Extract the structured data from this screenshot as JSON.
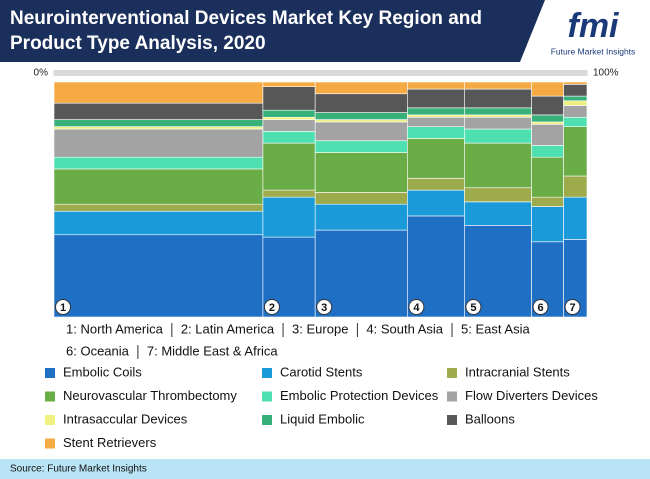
{
  "header": {
    "logo_text": "fmi",
    "logo_caption": "Future Market Insights"
  },
  "chart_data": {
    "type": "marimekko",
    "title": "Neurointerventional Devices Market Key Region and Product Type Analysis, 2020",
    "categories": [
      "North America",
      "Latin America",
      "Europe",
      "South Asia",
      "East Asia",
      "Oceania",
      "Middle East & Africa"
    ],
    "region_markers": [
      "1",
      "2",
      "3",
      "4",
      "5",
      "6",
      "7"
    ],
    "region_legend": [
      "1: North America",
      "2: Latin America",
      "3: Europe",
      "4: South Asia",
      "5: East Asia",
      "6: Oceania",
      "7: Middle East & Africa"
    ],
    "widths": [
      39.2,
      9.8,
      17.3,
      10.7,
      12.6,
      6.0,
      4.4
    ],
    "xlim": [
      0,
      100
    ],
    "xticks": [
      {
        "value": 0,
        "label": "0%"
      },
      {
        "value": 100,
        "label": "100%"
      }
    ],
    "ylim": [
      0,
      100
    ],
    "series": [
      {
        "name": "Embolic Coils",
        "color": "#1f6fc5",
        "values": [
          35,
          34,
          37,
          43,
          39,
          32,
          33
        ]
      },
      {
        "name": "Carotid Stents",
        "color": "#1a9ad8",
        "values": [
          10,
          17,
          11,
          11,
          10,
          15,
          18
        ]
      },
      {
        "name": "Intracranial Stents",
        "color": "#9dab4c",
        "values": [
          3,
          3,
          5,
          5,
          6,
          4,
          9
        ]
      },
      {
        "name": "Neurovascular Thrombectomy",
        "color": "#6aac45",
        "values": [
          15,
          20,
          17,
          17,
          19,
          17,
          21
        ]
      },
      {
        "name": "Embolic Protection Devices",
        "color": "#4ee0b0",
        "values": [
          5,
          5,
          5,
          5,
          6,
          5,
          4
        ]
      },
      {
        "name": "Flow Diverters Devices",
        "color": "#a3a3a3",
        "values": [
          12,
          5,
          8,
          4,
          5,
          9,
          5
        ]
      },
      {
        "name": "Intrasaccular Devices",
        "color": "#eef07f",
        "values": [
          1,
          1,
          1,
          1,
          1,
          1,
          2
        ]
      },
      {
        "name": "Liquid Embolic",
        "color": "#38b07a",
        "values": [
          3,
          3,
          3,
          3,
          3,
          3,
          2
        ]
      },
      {
        "name": "Balloons",
        "color": "#575757",
        "values": [
          7,
          10,
          8,
          8,
          8,
          8,
          5
        ]
      },
      {
        "name": "Stent Retrievers",
        "color": "#f6aa43",
        "values": [
          9,
          2,
          5,
          3,
          3,
          6,
          1
        ]
      }
    ],
    "source": "Source: Future Market Insights"
  }
}
